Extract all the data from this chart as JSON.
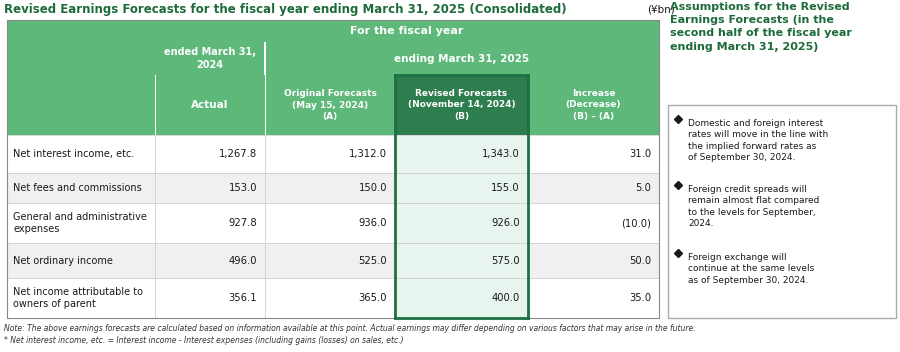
{
  "title": "Revised Earnings Forecasts for the fiscal year ending March 31, 2025 (Consolidated)",
  "unit": "(¥bn)",
  "main_header_1": "For the fiscal year",
  "col_header_ended": "ended March 31,\n2024",
  "col_header_ending": "ending March 31, 2025",
  "col_actual": "Actual",
  "col_original": "Original Forecasts\n(May 15, 2024)\n(A)",
  "col_revised": "Revised Forecasts\n(November 14, 2024)\n(B)",
  "col_increase": "Increase\n(Decrease)\n(B) – (A)",
  "rows": [
    {
      "label": "Net interest income, etc.",
      "actual": "1,267.8",
      "original": "1,312.0",
      "revised": "1,343.0",
      "increase": "31.0"
    },
    {
      "label": "Net fees and commissions",
      "actual": "153.0",
      "original": "150.0",
      "revised": "155.0",
      "increase": "5.0"
    },
    {
      "label": "General and administrative\nexpenses",
      "actual": "927.8",
      "original": "936.0",
      "revised": "926.0",
      "increase": "(10.0)"
    },
    {
      "label": "Net ordinary income",
      "actual": "496.0",
      "original": "525.0",
      "revised": "575.0",
      "increase": "50.0"
    },
    {
      "label": "Net income attributable to\nowners of parent",
      "actual": "356.1",
      "original": "365.0",
      "revised": "400.0",
      "increase": "35.0"
    }
  ],
  "assumptions_title": "Assumptions for the Revised\nEarnings Forecasts (in the\nsecond half of the fiscal year\nending March 31, 2025)",
  "assumptions": [
    "Domestic and foreign interest\nrates will move in the line with\nthe implied forward rates as\nof September 30, 2024.",
    "Foreign credit spreads will\nremain almost flat compared\nto the levels for September,\n2024.",
    "Foreign exchange will\ncontinue at the same levels\nas of September 30, 2024."
  ],
  "note1": "Note: The above earnings forecasts are calculated based on information available at this point. Actual earnings may differ depending on various factors that may arise in the future.",
  "note2": "* Net interest income, etc. = Interest income - Interest expenses (including gains (losses) on sales, etc.)",
  "color_green_header": "#5DB87A",
  "color_green_dark_header": "#2E7D4F",
  "color_green_title": "#1D6B3A",
  "color_revised_col_bg": "#E8F5EE",
  "color_row_white": "#FFFFFF",
  "color_row_gray": "#F0F0F0",
  "color_border_light": "#CCCCCC",
  "color_border_dark": "#1D7044"
}
